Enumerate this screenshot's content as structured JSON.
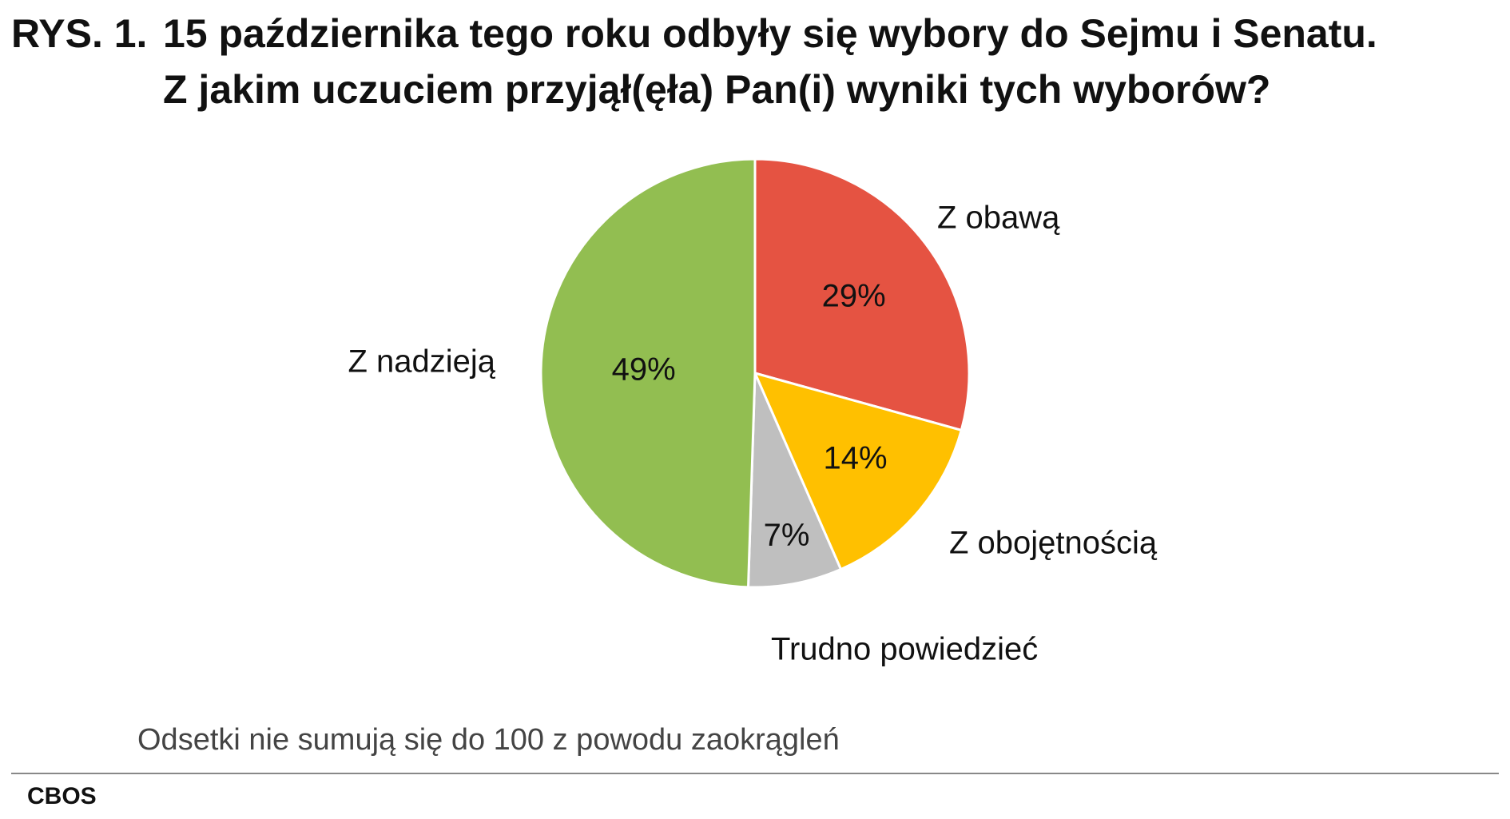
{
  "title": {
    "prefix": "RYS. 1.",
    "line1": "15 października tego roku odbyły się wybory do Sejmu i Senatu.",
    "line2": "Z jakim uczuciem przyjął(ęła) Pan(i) wyniki tych wyborów?"
  },
  "chart_data": {
    "type": "pie",
    "start_angle_deg": 0,
    "direction": "clockwise",
    "slices": [
      {
        "label": "Z obawą",
        "value": 29,
        "value_label": "29%",
        "color": "#E55342"
      },
      {
        "label": "Z obojętnością",
        "value": 14,
        "value_label": "14%",
        "color": "#FFC000"
      },
      {
        "label": "Trudno powiedzieć",
        "value": 7,
        "value_label": "7%",
        "color": "#BFBFBF"
      },
      {
        "label": "Z nadzieją",
        "value": 49,
        "value_label": "49%",
        "color": "#92BE51"
      }
    ]
  },
  "footnote": "Odsetki nie sumują się do 100 z powodu zaokrągleń",
  "source": "CBOS"
}
